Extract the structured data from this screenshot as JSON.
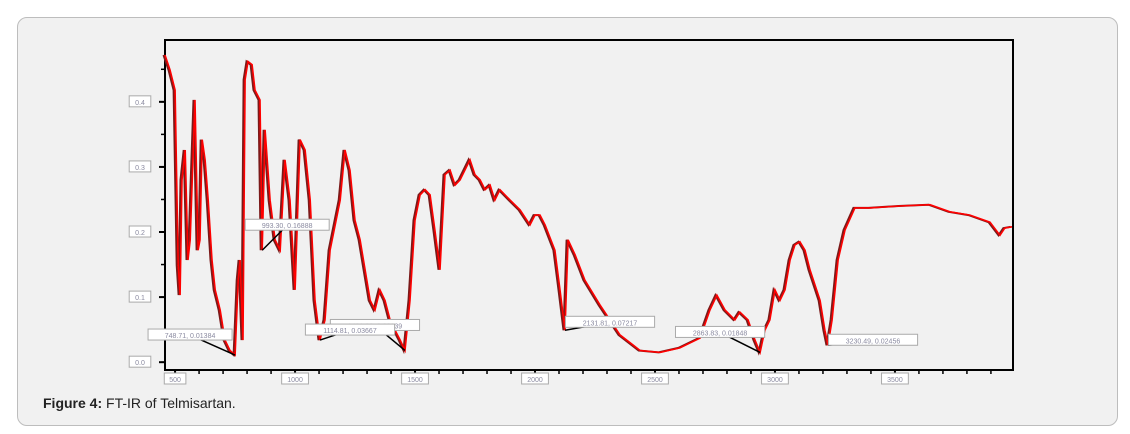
{
  "caption": {
    "label": "Figure 4:",
    "text": " FT-IR of Telmisartan."
  },
  "chart_data": {
    "type": "line",
    "title": "",
    "xlabel": "",
    "ylabel": "",
    "xlim": [
      458,
      3992
    ],
    "ylim": [
      -0.012,
      0.495
    ],
    "grid": false,
    "line_color": "#ff0000",
    "shadow_color": "#7a1a1a",
    "x_ticks": [
      500,
      1000,
      1500,
      2000,
      2500,
      3000,
      3500
    ],
    "x_tick_labels": [
      "500",
      "1000",
      "1500",
      "2000",
      "2500",
      "3000",
      "3500"
    ],
    "y_ticks": [
      0.0,
      0.1,
      0.2,
      0.3,
      0.4
    ],
    "y_tick_labels": [
      "0.0",
      "0.1",
      "0.2",
      "0.3",
      "0.4"
    ],
    "series": [
      {
        "x": [
          458,
          479,
          500,
          513,
          521,
          529,
          542,
          554,
          563,
          583,
          596,
          604,
          613,
          625,
          638,
          654,
          667,
          688,
          708,
          729,
          750,
          763,
          771,
          783,
          792,
          804,
          821,
          833,
          854,
          863,
          875,
          896,
          917,
          938,
          958,
          979,
          1000,
          1021,
          1042,
          1063,
          1083,
          1104,
          1125,
          1146,
          1188,
          1208,
          1229,
          1250,
          1271,
          1292,
          1313,
          1333,
          1354,
          1375,
          1396,
          1417,
          1438,
          1458,
          1479,
          1500,
          1521,
          1542,
          1563,
          1583,
          1604,
          1625,
          1646,
          1667,
          1688,
          1708,
          1729,
          1750,
          1771,
          1792,
          1813,
          1833,
          1854,
          1896,
          1938,
          1979,
          2000,
          2021,
          2042,
          2083,
          2104,
          2125,
          2138,
          2167,
          2208,
          2271,
          2354,
          2438,
          2521,
          2604,
          2688,
          2729,
          2758,
          2792,
          2833,
          2854,
          2888,
          2917,
          2938,
          2958,
          2979,
          3000,
          3021,
          3042,
          3063,
          3083,
          3104,
          3125,
          3146,
          3188,
          3208,
          3221,
          3238,
          3263,
          3292,
          3333,
          3396,
          3521,
          3646,
          3729,
          3813,
          3896,
          3938,
          3958,
          3988
        ],
        "y": [
          0.472,
          0.449,
          0.418,
          0.149,
          0.103,
          0.28,
          0.326,
          0.157,
          0.188,
          0.403,
          0.172,
          0.188,
          0.342,
          0.311,
          0.249,
          0.157,
          0.111,
          0.08,
          0.034,
          0.018,
          0.011,
          0.126,
          0.157,
          0.034,
          0.434,
          0.462,
          0.457,
          0.418,
          0.403,
          0.172,
          0.357,
          0.249,
          0.188,
          0.172,
          0.311,
          0.249,
          0.111,
          0.342,
          0.326,
          0.249,
          0.095,
          0.034,
          0.065,
          0.172,
          0.249,
          0.326,
          0.295,
          0.218,
          0.188,
          0.142,
          0.095,
          0.08,
          0.111,
          0.095,
          0.065,
          0.049,
          0.034,
          0.018,
          0.095,
          0.218,
          0.257,
          0.265,
          0.257,
          0.203,
          0.142,
          0.288,
          0.295,
          0.272,
          0.28,
          0.295,
          0.311,
          0.288,
          0.28,
          0.265,
          0.272,
          0.249,
          0.265,
          0.249,
          0.234,
          0.211,
          0.226,
          0.226,
          0.211,
          0.172,
          0.111,
          0.049,
          0.188,
          0.165,
          0.126,
          0.088,
          0.042,
          0.018,
          0.015,
          0.022,
          0.037,
          0.08,
          0.103,
          0.08,
          0.065,
          0.077,
          0.065,
          0.034,
          0.015,
          0.049,
          0.065,
          0.111,
          0.095,
          0.111,
          0.157,
          0.18,
          0.185,
          0.172,
          0.142,
          0.095,
          0.049,
          0.026,
          0.065,
          0.157,
          0.203,
          0.237,
          0.237,
          0.24,
          0.242,
          0.231,
          0.226,
          0.215,
          0.195,
          0.206,
          0.208
        ]
      }
    ],
    "annotations": [
      {
        "text": "748.71, 0.01384",
        "x": 750,
        "y": 0.011
      },
      {
        "text": "993.30, 0.16888",
        "x": 863,
        "y": 0.172
      },
      {
        "text": "1431.26, 0.03139",
        "x": 1458,
        "y": 0.018
      },
      {
        "text": "1114.81, 0.03667",
        "x": 1104,
        "y": 0.034
      },
      {
        "text": "2131.81, 0.07217",
        "x": 2125,
        "y": 0.049
      },
      {
        "text": "2863.83, 0.01848",
        "x": 2938,
        "y": 0.015
      },
      {
        "text": "3230.49, 0.02456",
        "x": 3221,
        "y": 0.026
      }
    ]
  }
}
